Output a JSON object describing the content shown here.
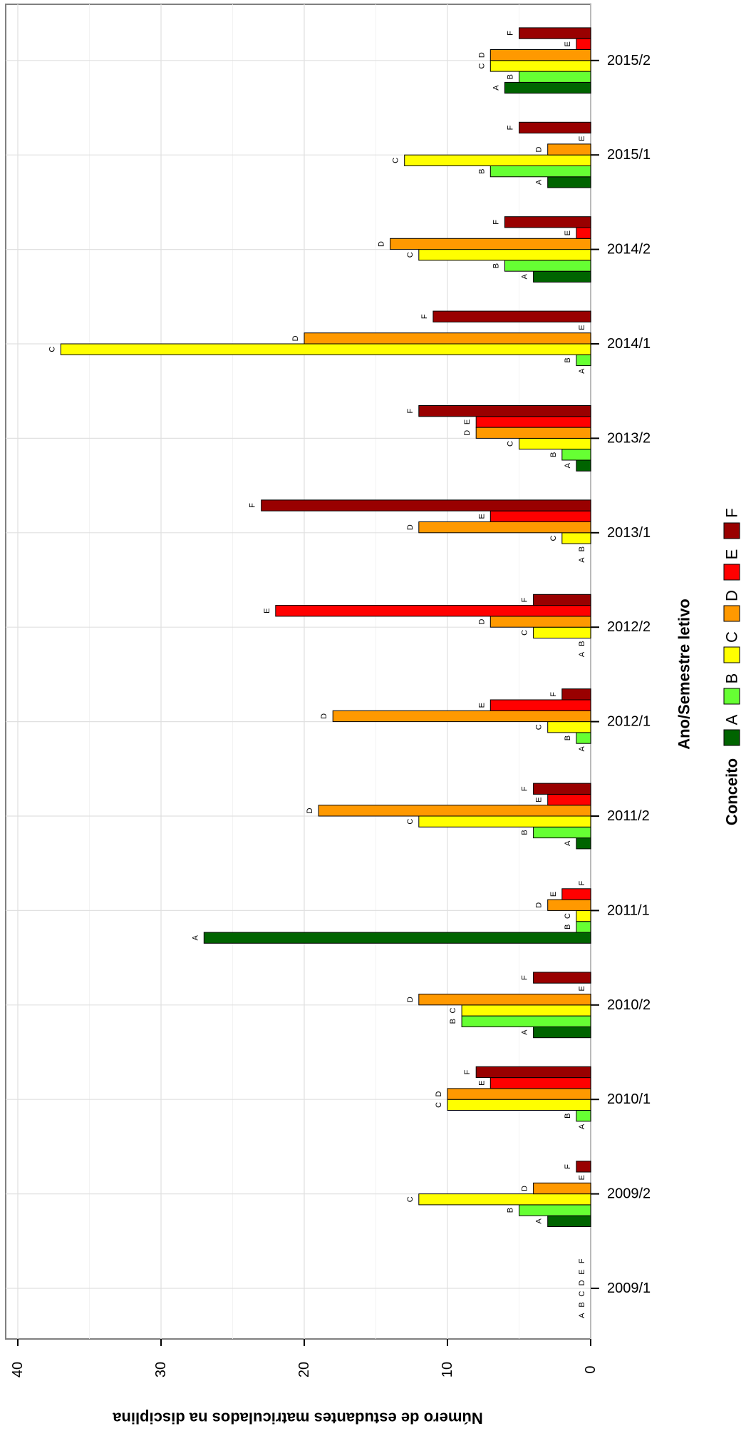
{
  "chart_data": {
    "type": "bar",
    "orientation": "horizontal",
    "title": "",
    "xlabel": "Ano/Semestre letivo",
    "ylabel": "Número de estudantes matriculados na disciplina",
    "ylim": [
      0,
      40
    ],
    "yticks": [
      0,
      10,
      20,
      30,
      40
    ],
    "grid": true,
    "categories": [
      "2009/1",
      "2009/2",
      "2010/1",
      "2010/2",
      "2011/1",
      "2011/2",
      "2012/1",
      "2012/2",
      "2013/1",
      "2013/2",
      "2014/1",
      "2014/2",
      "2015/1",
      "2015/2"
    ],
    "legend": {
      "title": "Conceito",
      "placement": "bottom"
    },
    "series": [
      {
        "name": "A",
        "color": "#006400",
        "values": [
          0,
          3,
          0,
          4,
          27,
          1,
          0,
          0,
          0,
          1,
          0,
          4,
          3,
          6
        ]
      },
      {
        "name": "B",
        "color": "#66ff33",
        "values": [
          0,
          5,
          1,
          9,
          1,
          4,
          1,
          0,
          0,
          2,
          1,
          6,
          7,
          5
        ]
      },
      {
        "name": "C",
        "color": "#ffff00",
        "values": [
          0,
          12,
          10,
          9,
          1,
          12,
          3,
          4,
          2,
          5,
          37,
          12,
          13,
          7
        ]
      },
      {
        "name": "D",
        "color": "#ff9900",
        "values": [
          0,
          4,
          10,
          12,
          3,
          19,
          18,
          7,
          12,
          8,
          20,
          14,
          3,
          7
        ]
      },
      {
        "name": "E",
        "color": "#ff0000",
        "values": [
          0,
          0,
          7,
          0,
          2,
          3,
          7,
          22,
          7,
          8,
          0,
          1,
          0,
          1
        ]
      },
      {
        "name": "F",
        "color": "#990000",
        "values": [
          0,
          1,
          8,
          4,
          0,
          4,
          2,
          4,
          23,
          12,
          11,
          6,
          5,
          5
        ]
      }
    ]
  }
}
